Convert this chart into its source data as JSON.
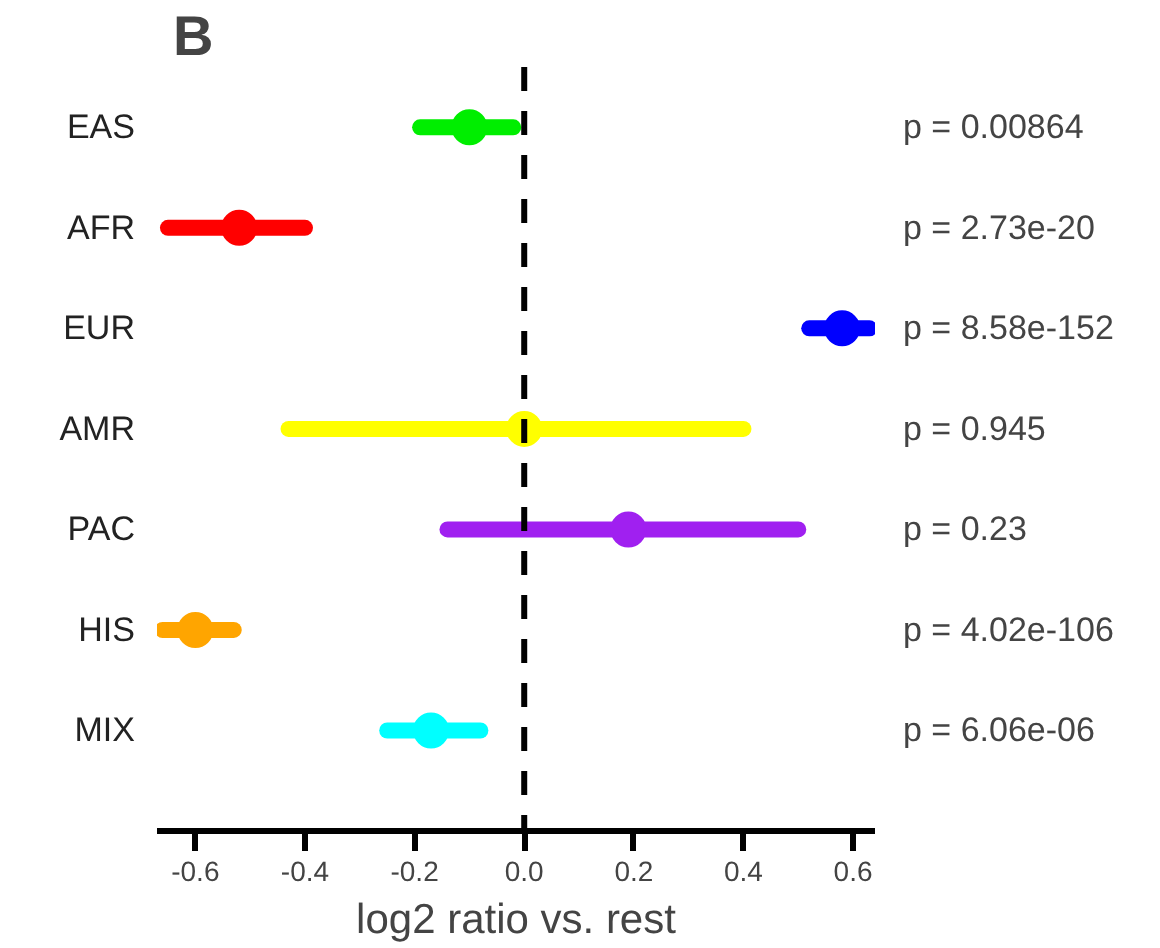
{
  "chart_data": {
    "type": "scatter",
    "title": "B",
    "xlabel": "log2 ratio vs. rest",
    "orientation": "horizontal",
    "marker": "circle",
    "categories": [
      "EAS",
      "AFR",
      "EUR",
      "AMR",
      "PAC",
      "HIS",
      "MIX"
    ],
    "values": [
      -0.1,
      -0.52,
      0.58,
      0.0,
      0.19,
      -0.6,
      -0.17
    ],
    "errors": [
      [
        -0.19,
        -0.02
      ],
      [
        -0.65,
        -0.4
      ],
      [
        0.52,
        0.63
      ],
      [
        -0.43,
        0.4
      ],
      [
        -0.14,
        0.5
      ],
      [
        -0.66,
        -0.53
      ],
      [
        -0.25,
        -0.08
      ]
    ],
    "colors": [
      "#00ee00",
      "#ff0000",
      "#0000ff",
      "#ffff00",
      "#a020f0",
      "#ffa500",
      "#00ffff"
    ],
    "xlim": [
      -0.67,
      0.64
    ],
    "xticks": [
      {
        "value": -0.6,
        "label": "-0.6"
      },
      {
        "value": -0.4,
        "label": "-0.4"
      },
      {
        "value": -0.2,
        "label": "-0.2"
      },
      {
        "value": 0,
        "label": "0.0"
      },
      {
        "value": 0.2,
        "label": "0.2"
      },
      {
        "value": 0.4,
        "label": "0.4"
      },
      {
        "value": 0.6,
        "label": "0.6"
      }
    ],
    "ref_lines": [
      {
        "axis": "x",
        "value": 0,
        "color": "#000000",
        "line_style": "dashed"
      }
    ],
    "annotations": [
      "p = 0.00864",
      "p = 2.73e-20",
      "p = 8.58e-152",
      "p = 0.945",
      "p = 0.23",
      "p = 4.02e-106",
      "p = 6.06e-06"
    ],
    "grid": false
  }
}
